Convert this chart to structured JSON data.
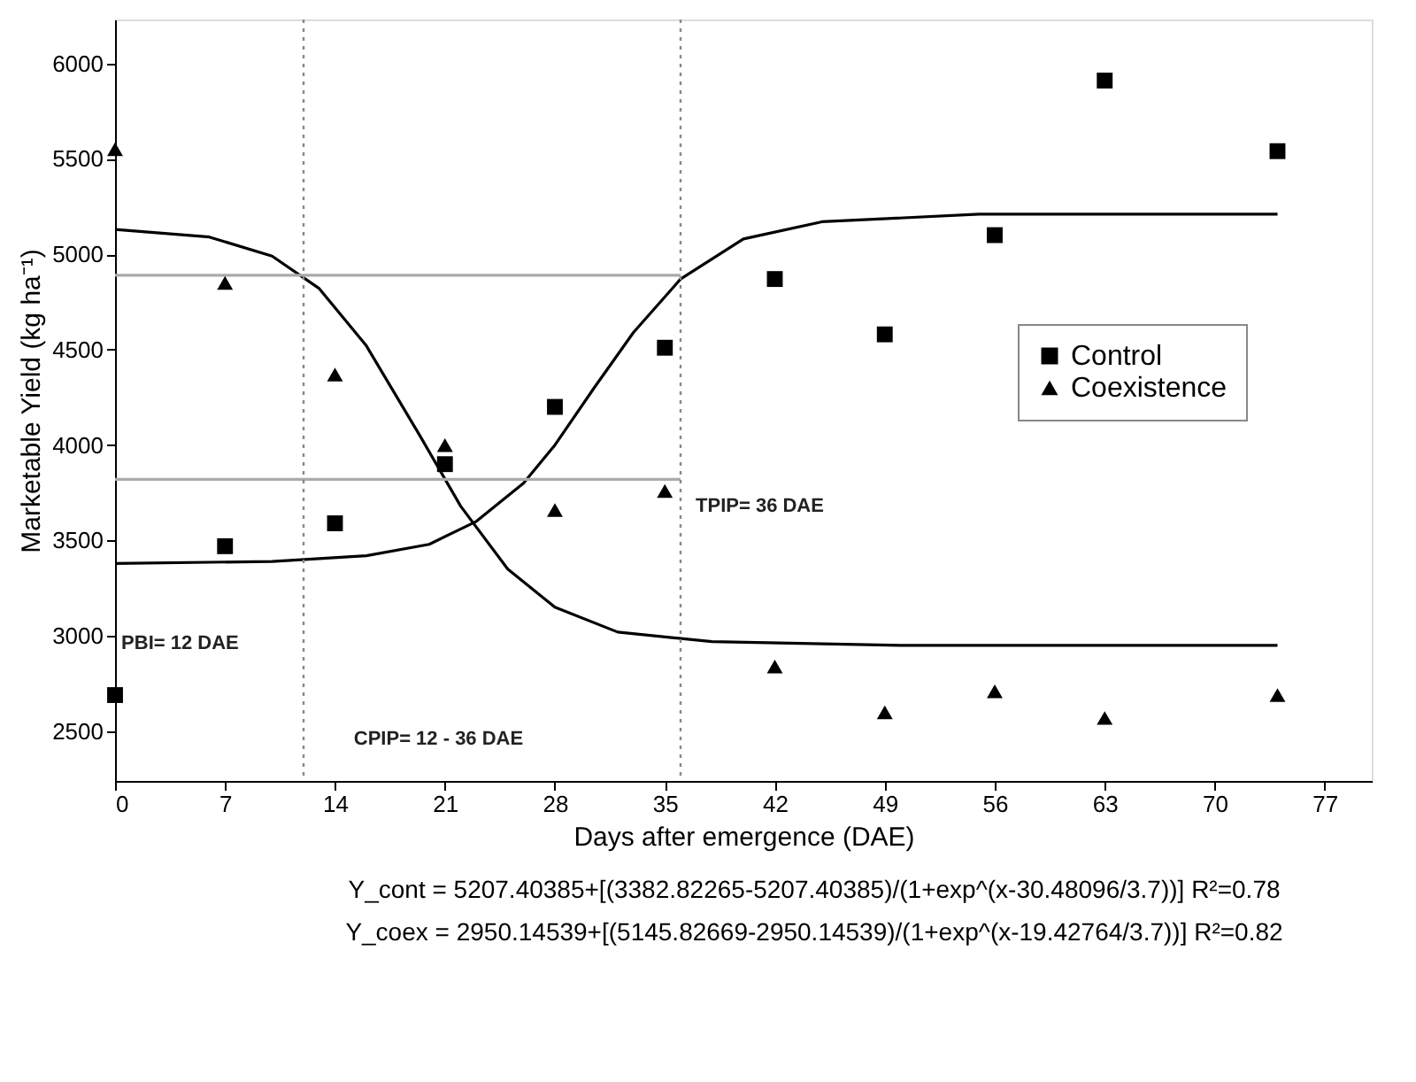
{
  "chart_data": {
    "type": "scatter",
    "xlabel": "Days after emergence (DAE)",
    "ylabel": "Marketable Yield (kg ha⁻¹)",
    "xlim": [
      0,
      80
    ],
    "xticks": [
      0,
      7,
      14,
      21,
      28,
      35,
      42,
      49,
      56,
      63,
      70,
      77
    ],
    "ylim": [
      2240,
      6230
    ],
    "yticks": [
      2500,
      3000,
      3500,
      4000,
      4500,
      5000,
      5500,
      6000
    ],
    "grid": false,
    "legend": "right",
    "series": [
      {
        "name": "Control",
        "marker": "square",
        "color": "#000000",
        "x": [
          0,
          7,
          14,
          21,
          28,
          35,
          42,
          49,
          56,
          63,
          74
        ],
        "values": [
          2690,
          3470,
          3590,
          3900,
          4200,
          4510,
          4870,
          4580,
          5100,
          5910,
          5540
        ]
      },
      {
        "name": "Coexistence",
        "marker": "triangle",
        "color": "#000000",
        "x": [
          0,
          7,
          14,
          21,
          28,
          35,
          42,
          49,
          56,
          63,
          74
        ],
        "values": [
          5550,
          4850,
          4370,
          4000,
          3660,
          3760,
          2840,
          2600,
          2710,
          2570,
          2690
        ]
      },
      {
        "type": "line",
        "color": "#000000",
        "line_style": "solid",
        "x": [
          0,
          10,
          16,
          20,
          23,
          26,
          28,
          30.5,
          33,
          36,
          40,
          45,
          55,
          74
        ],
        "values": [
          3380,
          3390,
          3420,
          3480,
          3600,
          3800,
          4000,
          4300,
          4590,
          4870,
          5080,
          5170,
          5210,
          5210
        ]
      },
      {
        "type": "line",
        "color": "#000000",
        "line_style": "solid",
        "x": [
          0,
          6,
          10,
          13,
          16,
          19.4,
          22,
          25,
          28,
          32,
          38,
          50,
          74
        ],
        "values": [
          5130,
          5090,
          4990,
          4820,
          4520,
          4050,
          3680,
          3350,
          3150,
          3020,
          2970,
          2950,
          2950
        ]
      },
      {
        "type": "line",
        "color": "#aaaaaa",
        "line_style": "solid",
        "x": [
          0,
          36
        ],
        "values": [
          4890,
          4890
        ]
      },
      {
        "type": "line",
        "color": "#aaaaaa",
        "line_style": "solid",
        "x": [
          0,
          36
        ],
        "values": [
          3820,
          3820
        ]
      }
    ],
    "ref_lines": [
      {
        "axis": "x",
        "value": 12,
        "color": "#888888",
        "line_style": "dotted"
      },
      {
        "axis": "x",
        "value": 36,
        "color": "#888888",
        "line_style": "dotted"
      }
    ],
    "annotations": [
      "PBI= 12 DAE",
      "CPIP= 12 - 36 DAE",
      "TPIP= 36 DAE",
      "Y_cont = 5207.40385+[(3382.82265-5207.40385)/(1+exp^(x-30.48096/3.7))]   R²=0.78",
      "Y_coex = 2950.14539+[(5145.82669-2950.14539)/(1+exp^(x-19.42764/3.7))]   R²=0.82"
    ]
  }
}
